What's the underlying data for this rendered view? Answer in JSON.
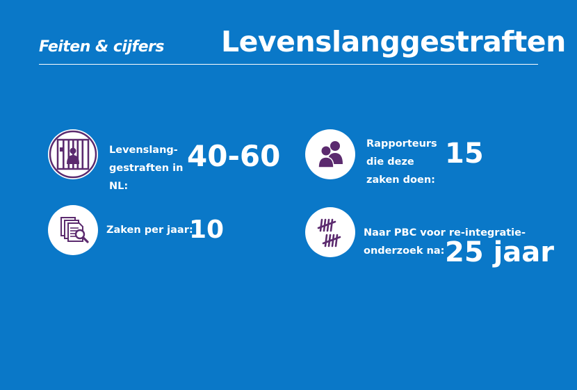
{
  "header": {
    "brand": "Feiten & cijfers",
    "title": "Levenslanggestraften"
  },
  "facts": [
    {
      "icon": "prison-bars-icon",
      "label_lines": [
        "Levenslang-",
        "gestraften in",
        "NL:"
      ],
      "value": "40-60"
    },
    {
      "icon": "people-icon",
      "label_lines": [
        "Rapporteurs",
        "die deze",
        "zaken doen:"
      ],
      "value": "15"
    },
    {
      "icon": "document-search-icon",
      "label_lines": [
        "Zaken per jaar:"
      ],
      "value": "10"
    },
    {
      "icon": "tally-marks-icon",
      "label_lines": [
        "Naar PBC voor re-integratie-",
        "onderzoek na:"
      ],
      "value": "25 jaar"
    }
  ],
  "colors": {
    "background": "#0a78c8",
    "icon": "#5b2a6e",
    "text": "#ffffff"
  }
}
